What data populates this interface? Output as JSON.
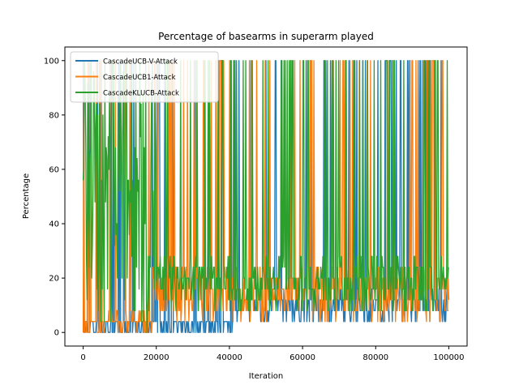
{
  "chart_data": {
    "type": "line",
    "title": "Percentage of basearms in superarm played",
    "xlabel": "Iteration",
    "ylabel": "Percentage",
    "xlim": [
      -5000,
      105000
    ],
    "ylim": [
      -5,
      105
    ],
    "xticks": [
      0,
      20000,
      40000,
      60000,
      80000,
      100000
    ],
    "xtick_labels": [
      "0",
      "20000",
      "40000",
      "60000",
      "80000",
      "100000"
    ],
    "yticks": [
      0,
      20,
      40,
      60,
      80,
      100
    ],
    "ytick_labels": [
      "0",
      "20",
      "40",
      "60",
      "80",
      "100"
    ],
    "grid": false,
    "legend_position": "top-left",
    "series": [
      {
        "name": "CascadeUCB-V-Attack",
        "color": "#1f77b4",
        "segments": [
          {
            "x_start": 0,
            "x_end": 41000,
            "low": 0,
            "high": 4
          },
          {
            "x_start": 41000,
            "x_end": 100000,
            "low": 4,
            "high": 16
          }
        ],
        "spikes_to": 100
      },
      {
        "name": "CascadeUCB1-Attack",
        "color": "#ff7f0e",
        "segments": [
          {
            "x_start": 0,
            "x_end": 7000,
            "low": 0,
            "high": 4
          },
          {
            "x_start": 7000,
            "x_end": 19000,
            "low": 0,
            "high": 8
          },
          {
            "x_start": 19000,
            "x_end": 100000,
            "low": 4,
            "high": 24
          }
        ],
        "spikes_to": 100
      },
      {
        "name": "CascadeKLUCB-Attack",
        "color": "#2ca02c",
        "segments": [
          {
            "x_start": 0,
            "x_end": 20000,
            "low": 0,
            "high": 100
          },
          {
            "x_start": 20000,
            "x_end": 100000,
            "low": 8,
            "high": 28
          }
        ],
        "spikes_to": 100
      }
    ]
  }
}
